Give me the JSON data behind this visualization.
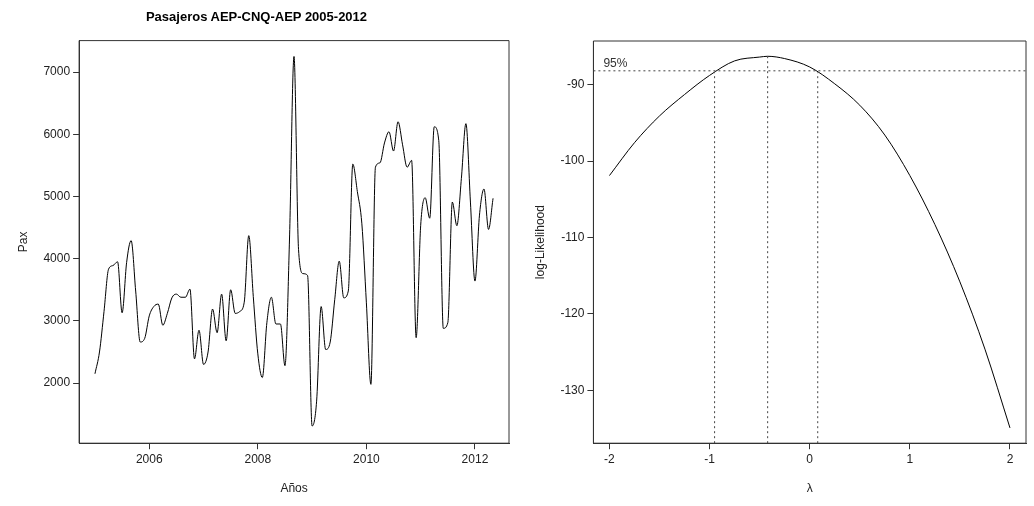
{
  "chart_data": [
    {
      "type": "line",
      "title": "Pasajeros AEP-CNQ-AEP 2005-2012",
      "xlabel": "Años",
      "ylabel": "Pax",
      "x": [
        "2005-01",
        "2005-02",
        "2005-03",
        "2005-04",
        "2005-05",
        "2005-06",
        "2005-07",
        "2005-08",
        "2005-09",
        "2005-10",
        "2005-11",
        "2005-12",
        "2006-01",
        "2006-02",
        "2006-03",
        "2006-04",
        "2006-05",
        "2006-06",
        "2006-07",
        "2006-08",
        "2006-09",
        "2006-10",
        "2006-11",
        "2006-12",
        "2007-01",
        "2007-02",
        "2007-03",
        "2007-04",
        "2007-05",
        "2007-06",
        "2007-07",
        "2007-08",
        "2007-09",
        "2007-10",
        "2007-11",
        "2007-12",
        "2008-01",
        "2008-02",
        "2008-03",
        "2008-04",
        "2008-05",
        "2008-06",
        "2008-07",
        "2008-08",
        "2008-09",
        "2008-10",
        "2008-11",
        "2008-12",
        "2009-01",
        "2009-02",
        "2009-03",
        "2009-04",
        "2009-05",
        "2009-06",
        "2009-07",
        "2009-08",
        "2009-09",
        "2009-10",
        "2009-11",
        "2009-12",
        "2010-01",
        "2010-02",
        "2010-03",
        "2010-04",
        "2010-05",
        "2010-06",
        "2010-07",
        "2010-08",
        "2010-09",
        "2010-10",
        "2010-11",
        "2010-12",
        "2011-01",
        "2011-02",
        "2011-03",
        "2011-04",
        "2011-05",
        "2011-06",
        "2011-07",
        "2011-08",
        "2011-09",
        "2011-10",
        "2011-11",
        "2011-12",
        "2012-01",
        "2012-02",
        "2012-03",
        "2012-04",
        "2012-05"
      ],
      "series": [
        {
          "color": "#000000",
          "values": [
            2150,
            2500,
            3150,
            3830,
            3890,
            3950,
            3130,
            3940,
            4290,
            3480,
            2660,
            2720,
            3080,
            3230,
            3270,
            2930,
            3120,
            3370,
            3430,
            3380,
            3380,
            3510,
            2390,
            2850,
            2300,
            2500,
            3190,
            2810,
            3430,
            2680,
            3500,
            3120,
            3150,
            3300,
            4370,
            3390,
            2470,
            2090,
            2970,
            3380,
            2950,
            2950,
            2280,
            4300,
            7250,
            4150,
            3760,
            3730,
            1310,
            1710,
            3230,
            2540,
            2660,
            3340,
            3960,
            3370,
            3480,
            5520,
            5080,
            4560,
            3290,
            1980,
            5470,
            5540,
            5860,
            6040,
            5730,
            6200,
            5830,
            5470,
            5580,
            2730,
            4530,
            4980,
            4650,
            6120,
            5900,
            2880,
            2970,
            4910,
            4530,
            5290,
            6170,
            4910,
            3640,
            4700,
            5120,
            4470,
            4970
          ]
        }
      ],
      "xlim": [
        "2004-09-16",
        "2012-08-17"
      ],
      "xticks": [
        "2006",
        "2008",
        "2010",
        "2012"
      ],
      "ylim": [
        1034,
        7505
      ],
      "yticks": [
        2000,
        3000,
        4000,
        5000,
        6000,
        7000
      ]
    },
    {
      "type": "line",
      "xlabel": "λ",
      "ylabel": "log-Likelihood",
      "x": [
        -2,
        -1.75,
        -1.5,
        -1.25,
        -1,
        -0.75,
        -0.5,
        -0.42,
        -0.25,
        0,
        0.25,
        0.5,
        0.75,
        1,
        1.25,
        1.5,
        1.75,
        2
      ],
      "series": [
        {
          "color": "#000000",
          "values": [
            -101.9,
            -97.6,
            -94.1,
            -91.3,
            -88.8,
            -86.9,
            -86.4,
            -86.3,
            -86.6,
            -87.7,
            -89.9,
            -92.7,
            -96.6,
            -101.9,
            -108.3,
            -115.8,
            -124.6,
            -134.9
          ]
        }
      ],
      "xlim": [
        -2.16,
        2.16
      ],
      "xticks": [
        -2,
        -1,
        0,
        1,
        2
      ],
      "ylim": [
        -136.9,
        -84.3
      ],
      "yticks": [
        -130,
        -120,
        -110,
        -100,
        -90
      ],
      "annotations": [
        {
          "text": "95%",
          "x": -2,
          "y": -88.2
        }
      ],
      "ref_lines": [
        {
          "axis": "y",
          "value": -88.2,
          "line_style": "dotted"
        },
        {
          "axis": "x",
          "value": -0.95,
          "line_style": "dotted"
        },
        {
          "axis": "x",
          "value": -0.42,
          "line_style": "dotted"
        },
        {
          "axis": "x",
          "value": 0.08,
          "line_style": "dotted"
        }
      ]
    }
  ]
}
